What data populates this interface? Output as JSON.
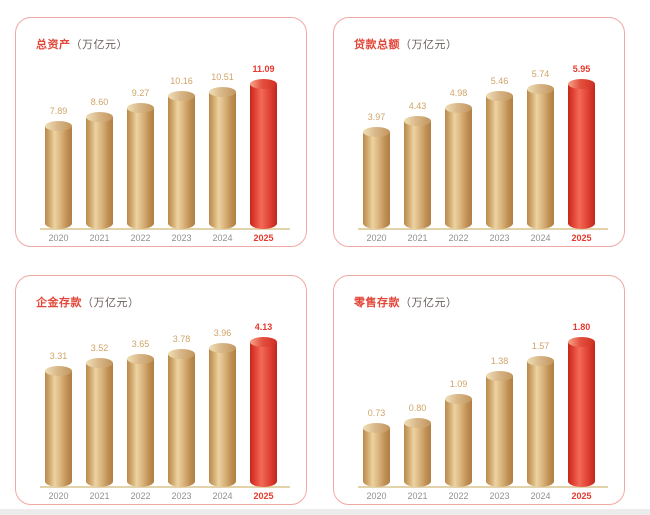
{
  "page": {
    "background": "#ffffff",
    "bottom_strip_color": "#ececec"
  },
  "styles": {
    "panel_border": "#f2a8a2",
    "title_color": "#e2483a",
    "unit_color": "#6b5f5d",
    "gold_label_color": "#cfa468",
    "red_label_color": "#e6392e",
    "year_color": "#909090",
    "year_highlight_color": "#e6392e",
    "baseline_color": "#e3d3ab",
    "gold_body_gradient": [
      "#b9894c",
      "#cfa76b",
      "#ecd3a2",
      "#d9b47c",
      "#bd8c50",
      "#b07f43"
    ],
    "gold_top_gradient": [
      "#efe0b6",
      "#d9b88a",
      "#c2955c"
    ],
    "red_body_gradient": [
      "#c4261d",
      "#e24335",
      "#f26a57",
      "#e14334",
      "#c2251c"
    ],
    "red_top_gradient": [
      "#f5a58b",
      "#e4503f",
      "#cf2f22"
    ]
  },
  "chart_data": [
    {
      "type": "bar",
      "title": "总资产",
      "unit_label": "（万亿元）",
      "categories": [
        "2020",
        "2021",
        "2022",
        "2023",
        "2024",
        "2025"
      ],
      "values": [
        7.89,
        8.6,
        9.27,
        10.16,
        10.51,
        11.09
      ],
      "value_labels": [
        "7.89",
        "8.60",
        "9.27",
        "10.16",
        "10.51",
        "11.09"
      ],
      "highlight_index": 5,
      "highlight_category": "2025",
      "bar_style": "gold-cylinder",
      "highlight_bar_style": "red-cylinder",
      "xlabel": "",
      "ylabel": "",
      "ylim": [
        0,
        11.09
      ],
      "grid": false,
      "legend": "none"
    },
    {
      "type": "bar",
      "title": "贷款总额",
      "unit_label": "（万亿元）",
      "categories": [
        "2020",
        "2021",
        "2022",
        "2023",
        "2024",
        "2025"
      ],
      "values": [
        3.97,
        4.43,
        4.98,
        5.46,
        5.74,
        5.95
      ],
      "value_labels": [
        "3.97",
        "4.43",
        "4.98",
        "5.46",
        "5.74",
        "5.95"
      ],
      "highlight_index": 5,
      "highlight_category": "2025",
      "bar_style": "gold-cylinder",
      "highlight_bar_style": "red-cylinder",
      "xlabel": "",
      "ylabel": "",
      "ylim": [
        0,
        5.95
      ],
      "grid": false,
      "legend": "none"
    },
    {
      "type": "bar",
      "title": "企金存款",
      "unit_label": "（万亿元）",
      "categories": [
        "2020",
        "2021",
        "2022",
        "2023",
        "2024",
        "2025"
      ],
      "values": [
        3.31,
        3.52,
        3.65,
        3.78,
        3.96,
        4.13
      ],
      "value_labels": [
        "3.31",
        "3.52",
        "3.65",
        "3.78",
        "3.96",
        "4.13"
      ],
      "highlight_index": 5,
      "highlight_category": "2025",
      "bar_style": "gold-cylinder",
      "highlight_bar_style": "red-cylinder",
      "xlabel": "",
      "ylabel": "",
      "ylim": [
        0,
        4.13
      ],
      "grid": false,
      "legend": "none"
    },
    {
      "type": "bar",
      "title": "零售存款",
      "unit_label": "（万亿元）",
      "categories": [
        "2020",
        "2021",
        "2022",
        "2023",
        "2024",
        "2025"
      ],
      "values": [
        0.73,
        0.8,
        1.09,
        1.38,
        1.57,
        1.8
      ],
      "value_labels": [
        "0.73",
        "0.80",
        "1.09",
        "1.38",
        "1.57",
        "1.80"
      ],
      "highlight_index": 5,
      "highlight_category": "2025",
      "bar_style": "gold-cylinder",
      "highlight_bar_style": "red-cylinder",
      "xlabel": "",
      "ylabel": "",
      "ylim": [
        0,
        1.8
      ],
      "grid": false,
      "legend": "none"
    }
  ]
}
